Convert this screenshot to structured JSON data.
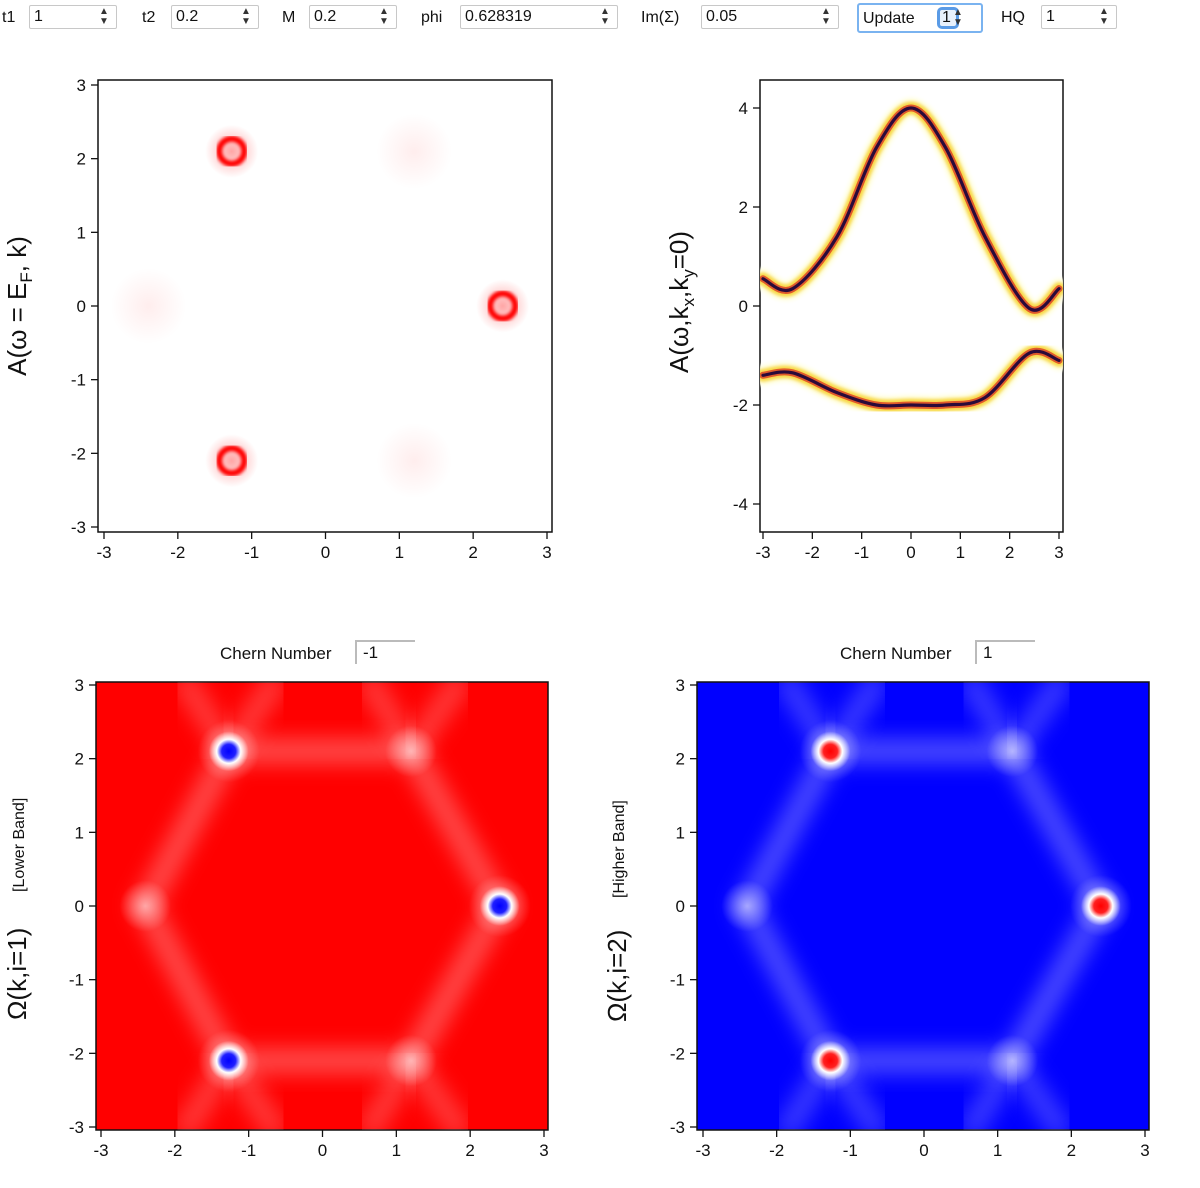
{
  "controls": [
    {
      "label": "t1",
      "value": "1"
    },
    {
      "label": "t2",
      "value": "0.2"
    },
    {
      "label": "M",
      "value": "0.2"
    },
    {
      "label": "phi",
      "value": "0.628319"
    },
    {
      "label": "Im(Σ)",
      "value": "0.05"
    },
    {
      "label": "Update",
      "value": "1"
    },
    {
      "label": "HQ",
      "value": "1"
    }
  ],
  "icons": {
    "stepper_up": "chevron-up-icon",
    "stepper_down": "chevron-down-icon"
  },
  "plots": {
    "fermi_surface": {
      "ylabel": "A(ω = EF, k)",
      "xticks": [
        "-3",
        "-2",
        "-1",
        "0",
        "1",
        "2",
        "3"
      ],
      "yticks": [
        "3",
        "2",
        "1",
        "0",
        "-1",
        "-2",
        "-3"
      ],
      "color": "#ff0000"
    },
    "dispersion": {
      "ylabel": "A(ω,kx,ky=0)",
      "xticks": [
        "-3",
        "-2",
        "-1",
        "0",
        "1",
        "2",
        "3"
      ],
      "yticks": [
        "4",
        "2",
        "0",
        "-2",
        "-4"
      ],
      "colors": [
        "#2a0a3a",
        "#d92f22",
        "#f7d22a",
        "#ffffe6"
      ]
    },
    "berry_lower": {
      "ylabel": "Ω(k,i=1)",
      "ylabel_note": "[Lower Band]",
      "chern_label": "Chern Number",
      "chern_value": "-1",
      "xticks": [
        "-3",
        "-2",
        "-1",
        "0",
        "1",
        "2",
        "3"
      ],
      "yticks": [
        "3",
        "2",
        "1",
        "0",
        "-1",
        "-2",
        "-3"
      ],
      "background": "#ff0000",
      "spot": "#0000ff"
    },
    "berry_higher": {
      "ylabel": "Ω(k,i=2)",
      "ylabel_note": "[Higher Band]",
      "chern_label": "Chern Number",
      "chern_value": "1",
      "xticks": [
        "-3",
        "-2",
        "-1",
        "0",
        "1",
        "2",
        "3"
      ],
      "yticks": [
        "3",
        "2",
        "1",
        "0",
        "-1",
        "-2",
        "-3"
      ],
      "background": "#0000ff",
      "spot": "#ff0000"
    }
  },
  "chart_data": [
    {
      "type": "heatmap",
      "xlim": [
        -3,
        3
      ],
      "ylim": [
        -3,
        3
      ],
      "features": [
        {
          "shape": "ring",
          "x": -1.27,
          "y": 2.1,
          "radius": 0.17
        },
        {
          "shape": "ring",
          "x": 2.4,
          "y": 0.0,
          "radius": 0.17
        },
        {
          "shape": "ring",
          "x": -1.27,
          "y": -2.1,
          "radius": 0.17
        },
        {
          "shape": "faint",
          "x": 1.2,
          "y": 2.1
        },
        {
          "shape": "faint",
          "x": -2.4,
          "y": 0.0
        },
        {
          "shape": "faint",
          "x": 1.2,
          "y": -2.1
        }
      ]
    },
    {
      "type": "line",
      "xlim": [
        -3.05,
        3.05
      ],
      "ylim": [
        -4.5,
        4.5
      ],
      "series": [
        {
          "x": [
            -3.0,
            -2.4,
            -1.5,
            -0.7,
            0.0,
            0.7,
            1.5,
            2.4,
            3.0
          ],
          "y": [
            0.55,
            0.35,
            1.4,
            3.2,
            4.0,
            3.2,
            1.4,
            -0.05,
            0.35
          ]
        },
        {
          "x": [
            -3.0,
            -2.4,
            -1.5,
            -0.7,
            0.0,
            0.7,
            1.5,
            2.4,
            3.0
          ],
          "y": [
            -1.4,
            -1.35,
            -1.75,
            -2.0,
            -2.0,
            -2.0,
            -1.85,
            -0.95,
            -1.1
          ]
        }
      ]
    },
    {
      "type": "heatmap",
      "xlim": [
        -3,
        3
      ],
      "ylim": [
        -3,
        3
      ],
      "features": [
        {
          "shape": "spot",
          "x": -1.27,
          "y": 2.1
        },
        {
          "shape": "spot",
          "x": 2.4,
          "y": 0.0
        },
        {
          "shape": "spot",
          "x": -1.27,
          "y": -2.1
        }
      ]
    },
    {
      "type": "heatmap",
      "xlim": [
        -3,
        3
      ],
      "ylim": [
        -3,
        3
      ],
      "features": [
        {
          "shape": "spot",
          "x": -1.27,
          "y": 2.1
        },
        {
          "shape": "spot",
          "x": 2.4,
          "y": 0.0
        },
        {
          "shape": "spot",
          "x": -1.27,
          "y": -2.1
        }
      ]
    }
  ]
}
